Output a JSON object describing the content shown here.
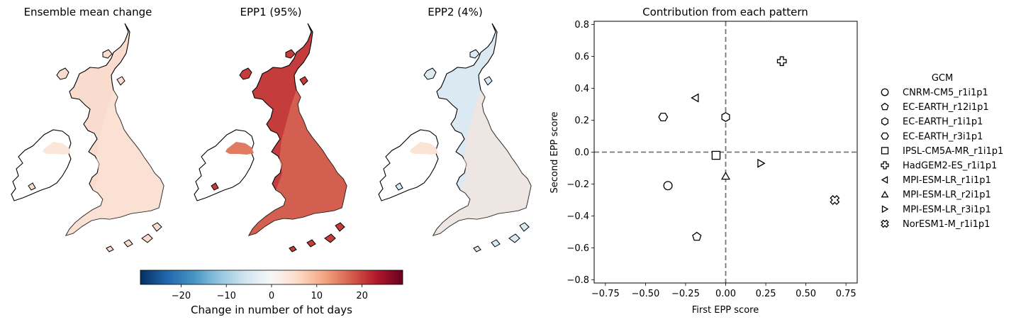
{
  "maps": [
    {
      "title": "Ensemble mean change",
      "fill": "#f9dccd",
      "sub_fill": "#fbe6da",
      "ireland_fill": "#ffffff"
    },
    {
      "title": "EPP1 (95%)",
      "fill": "#c43c3c",
      "sub_fill": "#e07b62",
      "ireland_fill": "#ffffff"
    },
    {
      "title": "EPP2 (4%)",
      "fill": "#dbe9f2",
      "sub_fill": "#fbe3d5",
      "ireland_fill": "#ffffff"
    }
  ],
  "colorbar": {
    "label": "Change in number of hot days",
    "min": -29,
    "max": 29,
    "ticks": [
      -20,
      -10,
      0,
      10,
      20
    ],
    "tick_labels": [
      "−20",
      "−10",
      "0",
      "10",
      "20"
    ],
    "colormap": "RdBu_r",
    "stops": [
      "#053061",
      "#2166ac",
      "#4393c3",
      "#92c5de",
      "#d1e5f0",
      "#f7f7f7",
      "#fddbc7",
      "#f4a582",
      "#d6604d",
      "#b2182b",
      "#67001f"
    ]
  },
  "chart_data": {
    "type": "scatter",
    "title": "Contribution from each pattern",
    "xlabel": "First EPP score",
    "ylabel": "Second EPP score",
    "xlim": [
      -0.82,
      0.82
    ],
    "ylim": [
      -0.82,
      0.82
    ],
    "xticks": [
      -0.75,
      -0.5,
      -0.25,
      0.0,
      0.25,
      0.5,
      0.75
    ],
    "xtick_labels": [
      "−0.75",
      "−0.50",
      "−0.25",
      "0.00",
      "0.25",
      "0.50",
      "0.75"
    ],
    "yticks": [
      -0.8,
      -0.6,
      -0.4,
      -0.2,
      0.0,
      0.2,
      0.4,
      0.6,
      0.8
    ],
    "ytick_labels": [
      "−0.8",
      "−0.6",
      "−0.4",
      "−0.2",
      "0.0",
      "0.2",
      "0.4",
      "0.6",
      "0.8"
    ],
    "reference_lines": {
      "x": 0,
      "y": 0,
      "style": "dashed",
      "color": "#777777"
    },
    "grid": false,
    "legend": {
      "title": "GCM",
      "placement": "right"
    },
    "series": [
      {
        "name": "CNRM-CM5_r1i1p1",
        "marker": "circle",
        "x": -0.36,
        "y": -0.21
      },
      {
        "name": "EC-EARTH_r12i1p1",
        "marker": "pentagon",
        "x": -0.18,
        "y": -0.53
      },
      {
        "name": "EC-EARTH_r1i1p1",
        "marker": "hexagon",
        "x": 0.0,
        "y": 0.22
      },
      {
        "name": "EC-EARTH_r3i1p1",
        "marker": "hexagon2",
        "x": -0.39,
        "y": 0.22
      },
      {
        "name": "IPSL-CM5A-MR_r1i1p1",
        "marker": "square",
        "x": -0.06,
        "y": -0.02
      },
      {
        "name": "HadGEM2-ES_r1i1p1",
        "marker": "plus",
        "x": 0.35,
        "y": 0.57
      },
      {
        "name": "MPI-ESM-LR_r1i1p1",
        "marker": "triangle-left",
        "x": -0.19,
        "y": 0.34
      },
      {
        "name": "MPI-ESM-LR_r2i1p1",
        "marker": "triangle-up",
        "x": 0.0,
        "y": -0.15
      },
      {
        "name": "MPI-ESM-LR_r3i1p1",
        "marker": "triangle-right",
        "x": 0.22,
        "y": -0.07
      },
      {
        "name": "NorESM1-M_r1i1p1",
        "marker": "x-filled",
        "x": 0.68,
        "y": -0.3
      }
    ]
  }
}
